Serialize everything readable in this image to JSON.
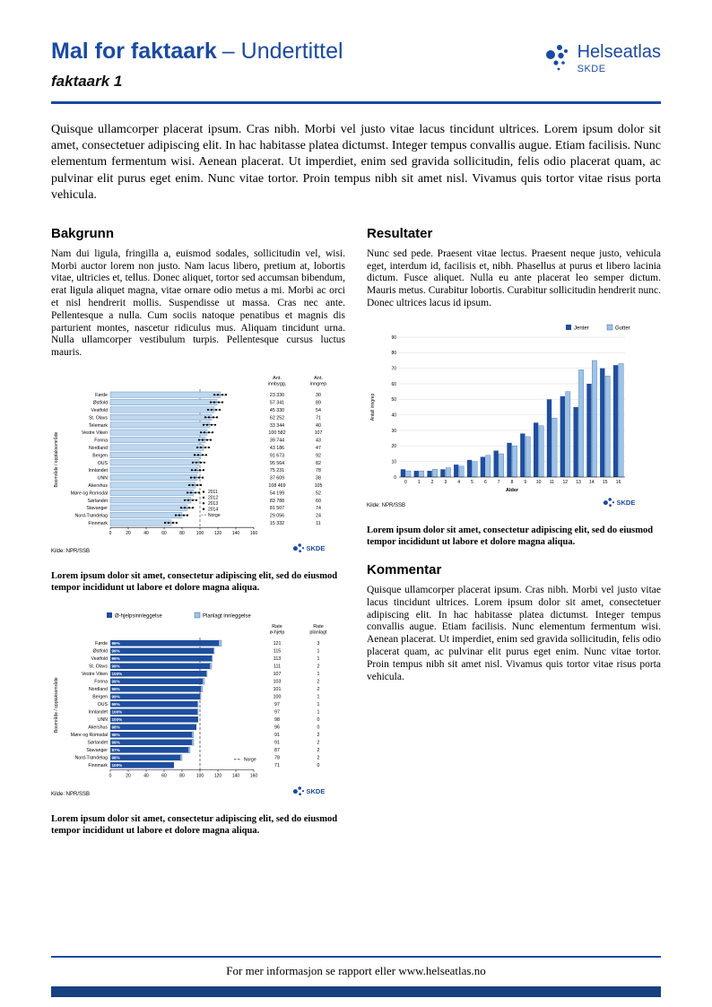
{
  "header": {
    "title": "Mal for faktaark",
    "title_suffix": "– Undertittel",
    "subtitle": "faktaark 1",
    "logo": {
      "name": "Helseatlas",
      "unit": "SKDE"
    }
  },
  "intro": "Quisque ullamcorper placerat ipsum. Cras nibh. Morbi vel justo vitae lacus tincidunt ultrices. Lorem ipsum dolor sit amet, consectetuer adipiscing elit. In hac habitasse platea dictumst. Integer tempus convallis augue. Etiam facilisis. Nunc elementum fermentum wisi. Aenean placerat. Ut imperdiet, enim sed gravida sollicitudin, felis odio placerat quam, ac pulvinar elit purus eget enim. Nunc vitae tortor. Proin tempus nibh sit amet nisl. Vivamus quis tortor vitae risus porta vehicula.",
  "sections": {
    "bakgrunn": {
      "heading": "Bakgrunn",
      "body": "Nam dui ligula, fringilla a, euismod sodales, sollicitudin vel, wisi. Morbi auctor lorem non justo. Nam lacus libero, pretium at, lobortis vitae, ultricies et, tellus. Donec aliquet, tortor sed accumsan bibendum, erat ligula aliquet magna, vitae ornare odio metus a mi. Morbi ac orci et nisl hendrerit mollis. Suspendisse ut massa. Cras nec ante. Pellentesque a nulla. Cum sociis natoque penatibus et magnis dis parturient montes, nascetur ridiculus mus. Aliquam tincidunt urna. Nulla ullamcorper vestibulum turpis. Pellentesque cursus luctus mauris."
    },
    "resultater": {
      "heading": "Resultater",
      "body": "Nunc sed pede. Praesent vitae lectus. Praesent neque justo, vehicula eget, interdum id, facilisis et, nibh. Phasellus at purus et libero lacinia dictum. Fusce aliquet. Nulla eu ante placerat leo semper dictum. Mauris metus. Curabitur lobortis. Curabitur sollicitudin hendrerit nunc. Donec ultrices lacus id ipsum."
    },
    "kommentar": {
      "heading": "Kommentar",
      "body": "Quisque ullamcorper placerat ipsum. Cras nibh. Morbi vel justo vitae lacus tincidunt ultrices. Lorem ipsum dolor sit amet, consectetuer adipiscing elit. In hac habitasse platea dictumst. Integer tempus convallis augue. Etiam facilisis. Nunc elementum fermentum wisi. Aenean placerat. Ut imperdiet, enim sed gravida sollicitudin, felis odio placerat quam, ac pulvinar elit purus eget enim. Nunc vitae tortor. Proin tempus nibh sit amet nisl. Vivamus quis tortor vitae risus porta vehicula."
    }
  },
  "captions": {
    "chart1": "Lorem ipsum dolor sit amet, consectetur adipiscing elit, sed do eiusmod tempor incididunt ut labore et dolore magna aliqua.",
    "chart2": "Lorem ipsum dolor sit amet, consectetur adipiscing elit, sed do eiusmod tempor incididunt ut labore et dolore magna aliqua.",
    "chart3": "Lorem ipsum dolor sit amet, consectetur adipiscing elit, sed do eiusmod tempor incididunt ut labore et dolore magna aliqua."
  },
  "footer": {
    "text": "For mer informasjon se rapport eller www.helseatlas.no"
  },
  "colors": {
    "brand": "#1b4aa2",
    "dark": "#1f4e9e",
    "light": "#9dc3e6",
    "bar_fill": "#bdd7ee",
    "bar_stroke": "#6a93c2",
    "rule": "#1b4aa2",
    "footer_bar": "#16407f"
  },
  "chart_data": [
    {
      "id": "chart1",
      "type": "bar",
      "orientation": "horizontal",
      "ylabel": "Boområde / opptaksområde",
      "xlim": [
        0,
        160
      ],
      "xticks": [
        0,
        20,
        40,
        60,
        80,
        100,
        120,
        140,
        160
      ],
      "reference_value": 100,
      "legend_years": [
        "2011",
        "2012",
        "2013",
        "2014"
      ],
      "legend_norge": "Norge",
      "col1_header": [
        "Ant.",
        "innbygg."
      ],
      "col2_header": [
        "Ant.",
        "inngrep"
      ],
      "categories": [
        "Førde",
        "Østfold",
        "Vestfold",
        "St. Olavs",
        "Telemark",
        "Vestre Viken",
        "Fonna",
        "Nordland",
        "Bergen",
        "OUS",
        "Innlandet",
        "UNN",
        "Akershus",
        "Møre og Romsdal",
        "Sørlandet",
        "Stavanger",
        "Nord-Trøndelag",
        "Finnmark"
      ],
      "values": [
        123,
        119,
        116,
        113,
        111,
        108,
        106,
        104,
        101,
        99,
        98,
        97,
        95,
        93,
        90,
        86,
        80,
        68
      ],
      "col1_values": [
        "23 330",
        "57 341",
        "45 330",
        "62 252",
        "33 344",
        "100 582",
        "39 744",
        "43 186",
        "91 673",
        "95 564",
        "75 231",
        "37 609",
        "108 469",
        "54 199",
        "83 788",
        "81 507",
        "29 056",
        "15 332"
      ],
      "col2_values": [
        "30",
        "89",
        "54",
        "71",
        "40",
        "107",
        "43",
        "47",
        "92",
        "82",
        "78",
        "38",
        "105",
        "52",
        "60",
        "74",
        "24",
        "11"
      ],
      "source": "Kilde: NPR/SSB"
    },
    {
      "id": "chart2",
      "type": "bar",
      "orientation": "horizontal",
      "stacked": true,
      "legend": [
        "Ø-hjelpsinnleggelse",
        "Planlagt innleggelse"
      ],
      "ylabel": "Boområde / opptaksområde",
      "xlim": [
        0,
        160
      ],
      "xticks": [
        0,
        20,
        40,
        60,
        80,
        100,
        120,
        140,
        160
      ],
      "reference_value": 100,
      "reference_label": "Norge",
      "col1_header": [
        "Rate",
        "ø-hjelp"
      ],
      "col2_header": [
        "Rate",
        "planlagt"
      ],
      "categories": [
        "Førde",
        "Østfold",
        "Vestfold",
        "St. Olavs",
        "Vestre Viken",
        "Fonna",
        "Nordland",
        "Bergen",
        "OUS",
        "Innlandet",
        "UNN",
        "Akershus",
        "Møre og Romsdal",
        "Sørlandet",
        "Stavanger",
        "Nord-Trøndelag",
        "Finnmark"
      ],
      "pct": [
        "99%",
        "99%",
        "99%",
        "99%",
        "100%",
        "99%",
        "99%",
        "99%",
        "99%",
        "100%",
        "100%",
        "98%",
        "98%",
        "99%",
        "97%",
        "98%",
        "100%"
      ],
      "ohjelp": [
        121,
        115,
        113,
        111,
        107,
        103,
        101,
        100,
        97,
        97,
        98,
        96,
        91,
        91,
        87,
        78,
        71
      ],
      "planlagt": [
        3,
        1,
        1,
        2,
        1,
        2,
        2,
        1,
        1,
        1,
        0,
        0,
        2,
        2,
        2,
        2,
        0
      ],
      "source": "Kilde: NPR/SSB"
    },
    {
      "id": "chart3",
      "type": "bar",
      "orientation": "vertical",
      "grouped": true,
      "xlabel": "Alder",
      "ylabel": "Antall inngrep",
      "ylim": [
        0,
        90
      ],
      "yticks": [
        0,
        10,
        20,
        30,
        40,
        50,
        60,
        70,
        80,
        90
      ],
      "x": [
        "0",
        "1",
        "2",
        "3",
        "4",
        "5",
        "6",
        "7",
        "8",
        "9",
        "10",
        "11",
        "12",
        "13",
        "14",
        "15",
        "16"
      ],
      "series": [
        {
          "name": "Jenter",
          "values": [
            5,
            4,
            4,
            5,
            8,
            11,
            13,
            17,
            22,
            28,
            35,
            50,
            52,
            45,
            60,
            70,
            72
          ]
        },
        {
          "name": "Gutter",
          "values": [
            4,
            4,
            5,
            6,
            7,
            10,
            14,
            15,
            20,
            26,
            33,
            38,
            55,
            69,
            75,
            65,
            73
          ]
        }
      ],
      "source": "Kilde: NPR/SSB"
    }
  ]
}
